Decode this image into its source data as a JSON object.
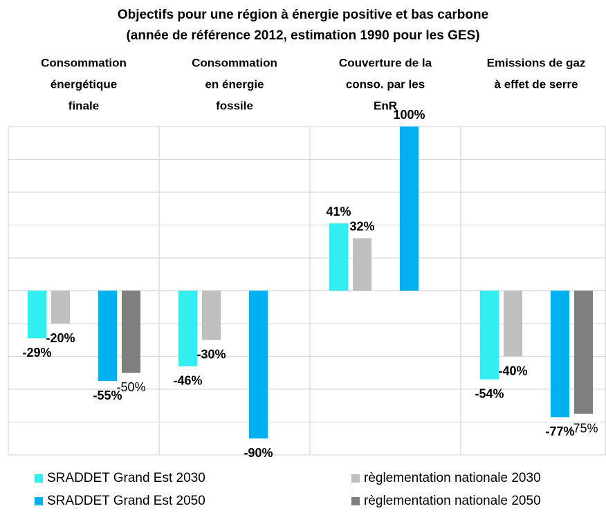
{
  "chart_data": {
    "type": "bar",
    "title": "Objectifs pour une région à énergie positive et bas carbone",
    "subtitle": "(année de référence 2012, estimation 1990 pour les GES)",
    "categories": [
      [
        "Consommation",
        "énergétique",
        "finale"
      ],
      [
        "Consommation",
        "en énergie",
        "fossile"
      ],
      [
        "Couverture de la",
        "conso. par les",
        "EnR"
      ],
      [
        "Emissions de gaz",
        "à effet de serre"
      ]
    ],
    "series": [
      {
        "name": "SRADDET Grand Est 2030",
        "color": "#33eef0",
        "values": [
          -29,
          -46,
          41,
          -54
        ],
        "value_labels": [
          "-29%",
          "-46%",
          "41%",
          "-54%"
        ]
      },
      {
        "name": "règlementation nationale 2030",
        "color": "#bfbfbf",
        "values": [
          -20,
          -30,
          32,
          -40
        ],
        "value_labels": [
          "-20%",
          "-30%",
          "32%",
          "-40%"
        ]
      },
      {
        "name": "SRADDET Grand Est 2050",
        "color": "#00b0f0",
        "values": [
          -55,
          -90,
          100,
          -77
        ],
        "value_labels": [
          "-55%",
          "-90%",
          "100%",
          "-77%"
        ]
      },
      {
        "name": "règlementation nationale 2050",
        "color": "#7f7f7f",
        "values": [
          -50,
          null,
          null,
          -75
        ],
        "value_labels": [
          "-50%",
          null,
          null,
          "-75%"
        ]
      }
    ],
    "ylim": [
      -100,
      100
    ],
    "yticks": [
      -100,
      -80,
      -60,
      -40,
      -20,
      0,
      20,
      40,
      60,
      80,
      100
    ],
    "grid": true
  }
}
